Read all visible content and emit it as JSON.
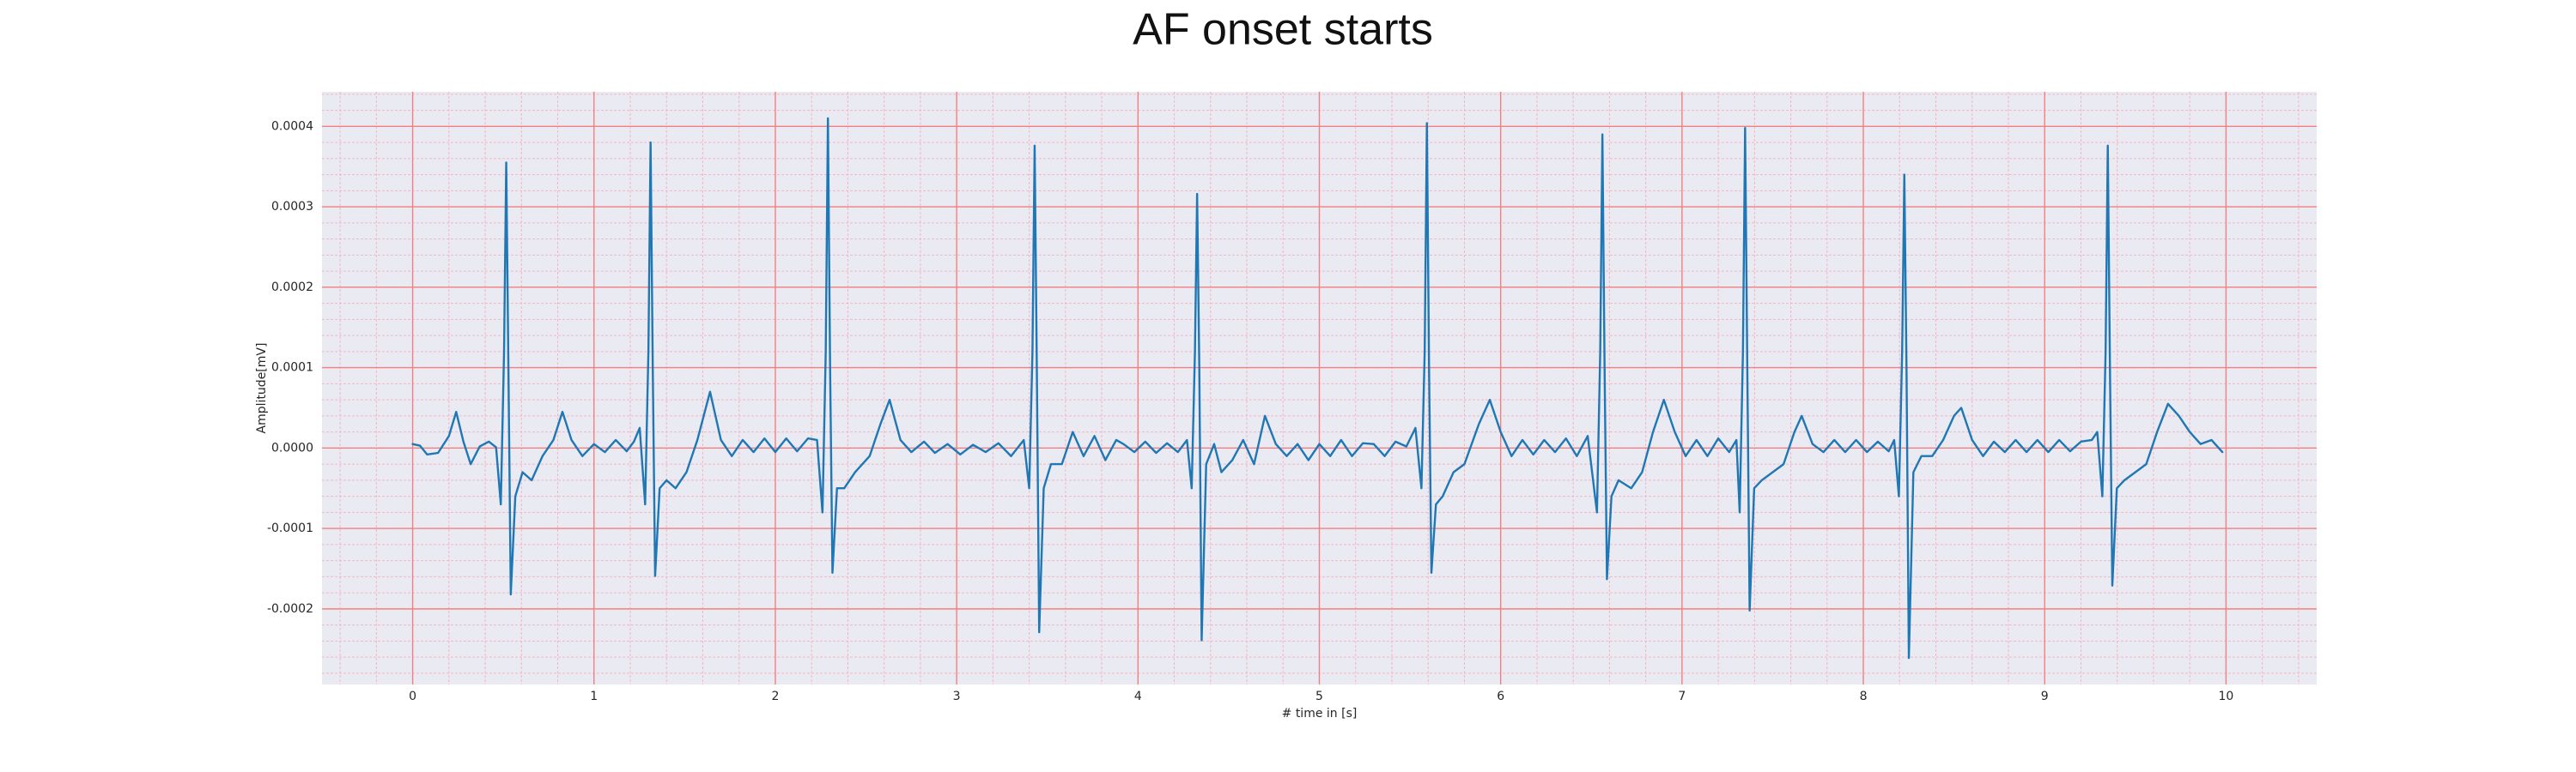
{
  "chart_data": {
    "type": "line",
    "title": "AF onset starts",
    "xlabel": "# time in [s]",
    "ylabel": "Amplitude[mV]",
    "color": "#1f77b4",
    "grid": true,
    "xlim": [
      -0.5,
      10.5
    ],
    "ylim": [
      -0.000294,
      0.000443
    ],
    "xticks": [
      0,
      1,
      2,
      3,
      4,
      5,
      6,
      7,
      8,
      9,
      10
    ],
    "yticks": [
      {
        "value": -0.0002,
        "label": "-0.0002"
      },
      {
        "value": -0.0001,
        "label": "-0.0001"
      },
      {
        "value": 0,
        "label": "0.0000"
      },
      {
        "value": 0.0001,
        "label": "0.0001"
      },
      {
        "value": 0.0002,
        "label": "0.0002"
      },
      {
        "value": 0.0003,
        "label": "0.0003"
      },
      {
        "value": 0.0004,
        "label": "0.0004"
      }
    ],
    "x": [
      0.0,
      0.04,
      0.08,
      0.14,
      0.2,
      0.24,
      0.28,
      0.32,
      0.37,
      0.42,
      0.46,
      0.486,
      0.504,
      0.516,
      0.528,
      0.541,
      0.566,
      0.606,
      0.656,
      0.716,
      0.776,
      0.826,
      0.876,
      0.936,
      1.0,
      1.06,
      1.12,
      1.18,
      1.22,
      1.252,
      1.282,
      1.3,
      1.312,
      1.324,
      1.337,
      1.362,
      1.4,
      1.45,
      1.51,
      1.57,
      1.64,
      1.7,
      1.76,
      1.82,
      1.88,
      1.94,
      2.0,
      2.06,
      2.12,
      2.18,
      2.23,
      2.26,
      2.278,
      2.29,
      2.302,
      2.315,
      2.34,
      2.38,
      2.44,
      2.52,
      2.58,
      2.63,
      2.69,
      2.75,
      2.82,
      2.88,
      2.95,
      3.02,
      3.09,
      3.16,
      3.23,
      3.3,
      3.37,
      3.4,
      3.418,
      3.43,
      3.442,
      3.455,
      3.48,
      3.52,
      3.58,
      3.64,
      3.7,
      3.76,
      3.82,
      3.88,
      3.92,
      3.98,
      4.04,
      4.1,
      4.16,
      4.22,
      4.27,
      4.296,
      4.314,
      4.326,
      4.338,
      4.351,
      4.376,
      4.42,
      4.46,
      4.52,
      4.58,
      4.64,
      4.7,
      4.76,
      4.82,
      4.88,
      4.94,
      5.0,
      5.06,
      5.12,
      5.18,
      5.24,
      5.3,
      5.36,
      5.42,
      5.48,
      5.53,
      5.563,
      5.581,
      5.593,
      5.605,
      5.618,
      5.643,
      5.68,
      5.74,
      5.8,
      5.88,
      5.94,
      6.0,
      6.06,
      6.12,
      6.18,
      6.24,
      6.3,
      6.36,
      6.42,
      6.48,
      6.531,
      6.549,
      6.561,
      6.573,
      6.586,
      6.611,
      6.65,
      6.72,
      6.78,
      6.84,
      6.9,
      6.96,
      7.02,
      7.08,
      7.14,
      7.2,
      7.26,
      7.3,
      7.318,
      7.336,
      7.348,
      7.36,
      7.373,
      7.398,
      7.44,
      7.5,
      7.56,
      7.62,
      7.66,
      7.72,
      7.78,
      7.84,
      7.9,
      7.96,
      8.02,
      8.08,
      8.14,
      8.17,
      8.196,
      8.214,
      8.226,
      8.238,
      8.251,
      8.276,
      8.32,
      8.38,
      8.44,
      8.5,
      8.54,
      8.6,
      8.66,
      8.72,
      8.78,
      8.84,
      8.9,
      8.96,
      9.02,
      9.08,
      9.14,
      9.2,
      9.26,
      9.29,
      9.318,
      9.336,
      9.348,
      9.36,
      9.373,
      9.398,
      9.44,
      9.5,
      9.56,
      9.62,
      9.68,
      9.74,
      9.8,
      9.86,
      9.92,
      9.98
    ],
    "values": [
      5e-06,
      3e-06,
      -8e-06,
      -6e-06,
      1.5e-05,
      4.5e-05,
      8e-06,
      -2e-05,
      2e-06,
      8e-06,
      1e-06,
      -7e-05,
      0.00012,
      0.000355,
      0.0001,
      -0.000182,
      -6e-05,
      -3e-05,
      -4e-05,
      -1e-05,
      1e-05,
      4.5e-05,
      1e-05,
      -1e-05,
      5e-06,
      -5e-06,
      1e-05,
      -4e-06,
      8e-06,
      2.5e-05,
      -7e-05,
      0.00012,
      0.00038,
      0.0001,
      -0.000159,
      -5e-05,
      -4e-05,
      -5e-05,
      -3e-05,
      1e-05,
      7e-05,
      1e-05,
      -1e-05,
      1e-05,
      -5e-06,
      1.2e-05,
      -5e-06,
      1.2e-05,
      -4e-06,
      1.2e-05,
      1e-05,
      -8e-05,
      0.00012,
      0.00041,
      0.0001,
      -0.000155,
      -5e-05,
      -5e-05,
      -3e-05,
      -1e-05,
      3e-05,
      6e-05,
      1e-05,
      -5e-06,
      8e-06,
      -6e-06,
      5e-06,
      -8e-06,
      4e-06,
      -5e-06,
      6e-06,
      -1e-05,
      1e-05,
      -5e-05,
      0.00012,
      0.000376,
      0.0001,
      -0.000229,
      -5e-05,
      -2e-05,
      -2e-05,
      2e-05,
      -1e-05,
      1.5e-05,
      -1.5e-05,
      1e-05,
      5e-06,
      -5e-06,
      8e-06,
      -6e-06,
      6e-06,
      -5e-06,
      1e-05,
      -5e-05,
      0.00012,
      0.000316,
      0.0001,
      -0.000239,
      -2e-05,
      5e-06,
      -3e-05,
      -1.5e-05,
      1e-05,
      -2e-05,
      4e-05,
      5e-06,
      -1e-05,
      5e-06,
      -1.5e-05,
      5e-06,
      -1e-05,
      1e-05,
      -1e-05,
      6e-06,
      5e-06,
      -1e-05,
      8e-06,
      2e-06,
      2.5e-05,
      -5e-05,
      0.00012,
      0.000404,
      0.0001,
      -0.000155,
      -7e-05,
      -6e-05,
      -3e-05,
      -2e-05,
      3e-05,
      6e-05,
      2e-05,
      -1e-05,
      1e-05,
      -8e-06,
      1e-05,
      -5e-06,
      1.2e-05,
      -1e-05,
      1.5e-05,
      -8e-05,
      0.00012,
      0.00039,
      0.0001,
      -0.000163,
      -6e-05,
      -4e-05,
      -5e-05,
      -3e-05,
      2e-05,
      6e-05,
      2e-05,
      -1e-05,
      1e-05,
      -1e-05,
      1.2e-05,
      -5e-06,
      1e-05,
      -8e-05,
      0.00012,
      0.000398,
      0.0001,
      -0.000202,
      -5e-05,
      -4e-05,
      -3e-05,
      -2e-05,
      2e-05,
      4e-05,
      5e-06,
      -5e-06,
      1e-05,
      -5e-06,
      1e-05,
      -5e-06,
      8e-06,
      -4e-06,
      1e-05,
      -6e-05,
      0.00012,
      0.00034,
      0.0001,
      -0.000261,
      -3e-05,
      -1e-05,
      -1e-05,
      1e-05,
      4e-05,
      5e-05,
      1e-05,
      -1e-05,
      8e-06,
      -5e-06,
      1e-05,
      -5e-06,
      1e-05,
      -5e-06,
      1e-05,
      -4e-06,
      8e-06,
      1e-05,
      2e-05,
      -6e-05,
      0.00012,
      0.000376,
      0.0001,
      -0.000171,
      -5e-05,
      -4e-05,
      -3e-05,
      -2e-05,
      2e-05,
      5.5e-05,
      4e-05,
      2e-05,
      5e-06,
      1e-05,
      -5e-06
    ]
  }
}
